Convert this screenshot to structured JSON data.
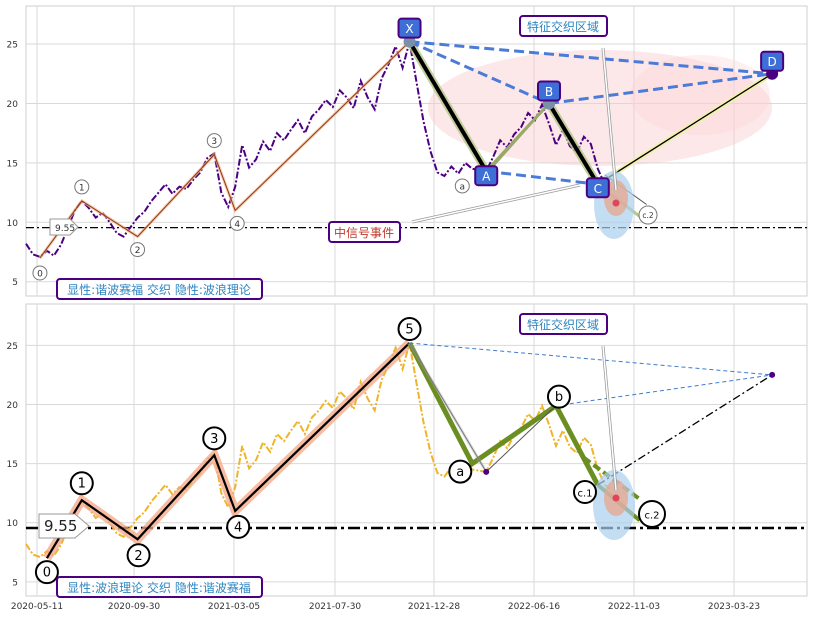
{
  "chart_data": {
    "type": "line",
    "x_tick_labels": [
      "2020-05-11",
      "2020-09-30",
      "2021-03-05",
      "2021-07-30",
      "2021-12-28",
      "2022-06-16",
      "2022-11-03",
      "2023-03-23"
    ],
    "y_tick_labels": [
      "5",
      "10",
      "15",
      "20",
      "25"
    ],
    "ylim": [
      3.8,
      28.5
    ],
    "grid": true,
    "hline": {
      "value": 9.55,
      "label": "9.55"
    },
    "price_series": [
      [
        0,
        8.2
      ],
      [
        1,
        7.3
      ],
      [
        2,
        7.1
      ],
      [
        3,
        7.6
      ],
      [
        4,
        7.2
      ],
      [
        5,
        8.1
      ],
      [
        6,
        9.5
      ],
      [
        7,
        11.0
      ],
      [
        8,
        11.8
      ],
      [
        9,
        11.2
      ],
      [
        10,
        10.4
      ],
      [
        11,
        10.8
      ],
      [
        12,
        10.0
      ],
      [
        13,
        9.1
      ],
      [
        14,
        8.8
      ],
      [
        15,
        9.6
      ],
      [
        16,
        10.4
      ],
      [
        17,
        10.9
      ],
      [
        18,
        11.8
      ],
      [
        19,
        12.5
      ],
      [
        20,
        13.2
      ],
      [
        21,
        12.4
      ],
      [
        22,
        13.0
      ],
      [
        23,
        12.8
      ],
      [
        24,
        13.6
      ],
      [
        25,
        14.2
      ],
      [
        26,
        15.4
      ],
      [
        27,
        15.8
      ],
      [
        28,
        12.5
      ],
      [
        29,
        11.3
      ],
      [
        30,
        13.0
      ],
      [
        31,
        16.5
      ],
      [
        32,
        14.6
      ],
      [
        33,
        15.3
      ],
      [
        34,
        16.8
      ],
      [
        35,
        16.0
      ],
      [
        36,
        17.5
      ],
      [
        37,
        16.9
      ],
      [
        38,
        17.8
      ],
      [
        39,
        18.6
      ],
      [
        40,
        17.5
      ],
      [
        41,
        18.9
      ],
      [
        42,
        19.5
      ],
      [
        43,
        20.3
      ],
      [
        44,
        19.7
      ],
      [
        45,
        21.1
      ],
      [
        46,
        20.5
      ],
      [
        47,
        19.6
      ],
      [
        48,
        21.9
      ],
      [
        49,
        20.5
      ],
      [
        50,
        19.5
      ],
      [
        51,
        22.1
      ],
      [
        52,
        23.3
      ],
      [
        53,
        24.8
      ],
      [
        54,
        23.0
      ],
      [
        55,
        25.2
      ],
      [
        56,
        21.8
      ],
      [
        57,
        18.5
      ],
      [
        58,
        16.0
      ],
      [
        59,
        14.2
      ],
      [
        60,
        13.9
      ],
      [
        61,
        14.7
      ],
      [
        62,
        14.1
      ],
      [
        63,
        15.0
      ],
      [
        64,
        14.5
      ],
      [
        65,
        14.4
      ],
      [
        66,
        14.3
      ],
      [
        67,
        15.5
      ],
      [
        68,
        16.9
      ],
      [
        69,
        16.3
      ],
      [
        70,
        17.4
      ],
      [
        71,
        18.0
      ],
      [
        72,
        19.2
      ],
      [
        73,
        18.6
      ],
      [
        74,
        19.9
      ],
      [
        75,
        18.3
      ],
      [
        76,
        16.5
      ],
      [
        77,
        17.8
      ],
      [
        78,
        16.4
      ],
      [
        79,
        15.9
      ],
      [
        80,
        17.2
      ],
      [
        81,
        16.6
      ],
      [
        82,
        14.5
      ],
      [
        83,
        13.2
      ],
      [
        84,
        12.8
      ]
    ],
    "top": {
      "label": "显性:谐波赛福 交织 隐性:波浪理论",
      "ylim": [
        3.8,
        28.2
      ],
      "wave_points": [
        {
          "label": "0",
          "x": 2,
          "y": 7.0
        },
        {
          "label": "1",
          "x": 8,
          "y": 11.8
        },
        {
          "label": "2",
          "x": 16,
          "y": 8.8
        },
        {
          "label": "3",
          "x": 27,
          "y": 15.7
        },
        {
          "label": "4",
          "x": 30,
          "y": 11.0
        },
        {
          "label": "5",
          "x": 55,
          "y": 25.2
        },
        {
          "label": "a",
          "x": 64,
          "y": 13.9
        }
      ],
      "harmonic_points": [
        {
          "label": "X",
          "x": 55,
          "y": 25.2
        },
        {
          "label": "A",
          "x": 66,
          "y": 14.3
        },
        {
          "label": "B",
          "x": 75,
          "y": 20.0
        },
        {
          "label": "C",
          "x": 82,
          "y": 13.2
        },
        {
          "label": "D",
          "x": 107,
          "y": 22.5
        }
      ],
      "point_c2": {
        "label": "c.2",
        "x": 89,
        "y": 9.3
      },
      "annotation_zone": "特征交织区域",
      "annotation_signal": "中信号事件"
    },
    "bottom": {
      "label": "显性:波浪理论 交织 隐性:谐波赛福",
      "ylim": [
        3.8,
        28.5
      ],
      "wave_points": [
        {
          "label": "0",
          "x": 3,
          "y": 7.0
        },
        {
          "label": "1",
          "x": 8,
          "y": 11.9
        },
        {
          "label": "2",
          "x": 16,
          "y": 8.6
        },
        {
          "label": "3",
          "x": 27,
          "y": 15.7
        },
        {
          "label": "4",
          "x": 30,
          "y": 11.0
        },
        {
          "label": "5",
          "x": 55,
          "y": 25.2
        },
        {
          "label": "a",
          "x": 64,
          "y": 15.0
        },
        {
          "label": "b",
          "x": 76,
          "y": 19.9
        },
        {
          "label": "c.1",
          "x": 82,
          "y": 13.2
        },
        {
          "label": "c.2",
          "x": 89,
          "y": 9.3
        }
      ],
      "harmonic_endpoint": {
        "x": 107,
        "y": 22.5
      },
      "annotation_zone": "特征交织区域"
    }
  }
}
